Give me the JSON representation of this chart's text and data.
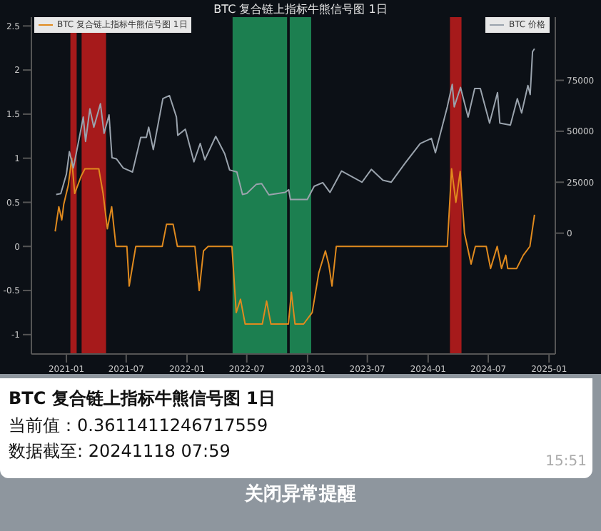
{
  "chart_data": {
    "type": "line",
    "title": "BTC 复合链上指标牛熊信号图 1日",
    "series": [
      {
        "name": "BTC 复合链上指标牛熊信号图 1日",
        "color": "#e08a1e",
        "axis": "y",
        "x": [
          "2020-11-28",
          "2020-12-09",
          "2020-12-18",
          "2020-12-24",
          "2021-01-07",
          "2021-01-17",
          "2021-01-26",
          "2021-02-15",
          "2021-02-26",
          "2021-04-09",
          "2021-04-22",
          "2021-05-05",
          "2021-05-18",
          "2021-05-31",
          "2021-07-03",
          "2021-07-10",
          "2021-07-21",
          "2021-07-30",
          "2021-10-18",
          "2021-10-31",
          "2021-11-20",
          "2021-12-03",
          "2022-01-25",
          "2022-02-07",
          "2022-02-20",
          "2022-03-06",
          "2022-05-17",
          "2022-05-30",
          "2022-06-12",
          "2022-06-26",
          "2022-08-17",
          "2022-08-30",
          "2022-09-12",
          "2022-11-04",
          "2022-11-13",
          "2022-11-24",
          "2022-12-20",
          "2023-01-15",
          "2023-02-04",
          "2023-02-24",
          "2023-03-06",
          "2023-03-16",
          "2023-03-29",
          "2024-02-28",
          "2024-03-12",
          "2024-03-25",
          "2024-04-07",
          "2024-04-20",
          "2024-05-10",
          "2024-05-23",
          "2024-06-25",
          "2024-07-08",
          "2024-07-28",
          "2024-08-10",
          "2024-08-23",
          "2024-08-29",
          "2024-09-25",
          "2024-10-15",
          "2024-11-04",
          "2024-11-18"
        ],
        "values": [
          0.17,
          0.45,
          0.3,
          0.48,
          0.7,
          1.0,
          0.6,
          0.8,
          0.88,
          0.88,
          0.6,
          0.2,
          0.45,
          0,
          0,
          -0.45,
          -0.2,
          0,
          0,
          0.25,
          0.25,
          0,
          0,
          -0.5,
          -0.05,
          0,
          0,
          -0.75,
          -0.6,
          -0.88,
          -0.88,
          -0.62,
          -0.88,
          -0.88,
          -0.52,
          -0.88,
          -0.88,
          -0.75,
          -0.3,
          -0.05,
          -0.2,
          -0.45,
          0,
          0,
          0.88,
          0.5,
          0.85,
          0.15,
          -0.2,
          0,
          0,
          -0.25,
          0,
          -0.25,
          -0.1,
          -0.25,
          -0.25,
          -0.1,
          0,
          0.36
        ]
      },
      {
        "name": "BTC 价格",
        "color": "#9aa3ad",
        "axis": "y2",
        "x": [
          "2020-12-01",
          "2020-12-15",
          "2021-01-01",
          "2021-01-10",
          "2021-01-22",
          "2021-02-08",
          "2021-02-21",
          "2021-02-28",
          "2021-03-13",
          "2021-03-25",
          "2021-04-14",
          "2021-04-25",
          "2021-05-10",
          "2021-05-19",
          "2021-06-01",
          "2021-06-22",
          "2021-07-20",
          "2021-08-14",
          "2021-08-31",
          "2021-09-07",
          "2021-09-21",
          "2021-10-20",
          "2021-11-09",
          "2021-11-30",
          "2021-12-04",
          "2021-12-27",
          "2022-01-22",
          "2022-02-10",
          "2022-02-24",
          "2022-03-29",
          "2022-04-25",
          "2022-05-10",
          "2022-06-01",
          "2022-06-18",
          "2022-07-01",
          "2022-07-30",
          "2022-08-15",
          "2022-09-06",
          "2022-10-25",
          "2022-11-05",
          "2022-11-10",
          "2022-12-31",
          "2023-01-21",
          "2023-02-16",
          "2023-03-10",
          "2023-04-14",
          "2023-06-15",
          "2023-07-13",
          "2023-08-17",
          "2023-09-11",
          "2023-10-24",
          "2023-12-08",
          "2024-01-11",
          "2024-01-23",
          "2024-02-28",
          "2024-03-14",
          "2024-03-20",
          "2024-04-08",
          "2024-05-01",
          "2024-05-21",
          "2024-06-07",
          "2024-07-05",
          "2024-07-29",
          "2024-08-05",
          "2024-09-06",
          "2024-09-27",
          "2024-10-10",
          "2024-10-29",
          "2024-11-05",
          "2024-11-12",
          "2024-11-18"
        ],
        "values": [
          19000,
          19400,
          29000,
          40000,
          32000,
          46000,
          57000,
          45000,
          61000,
          52000,
          63500,
          49000,
          58000,
          37000,
          36500,
          32000,
          30000,
          47000,
          47000,
          52000,
          41000,
          66000,
          67500,
          57000,
          48000,
          51000,
          35000,
          44000,
          36000,
          47500,
          39000,
          31000,
          30000,
          19000,
          19500,
          24000,
          24300,
          18800,
          20000,
          21300,
          16500,
          16500,
          23000,
          24800,
          20000,
          30500,
          25000,
          31300,
          26000,
          25000,
          34500,
          44000,
          46500,
          39500,
          62000,
          73000,
          62000,
          71500,
          57000,
          71000,
          71000,
          54000,
          69000,
          54000,
          53000,
          66000,
          59000,
          72500,
          68000,
          89000,
          90500
        ]
      }
    ],
    "xlim": [
      "2020-09-17",
      "2025-01-20"
    ],
    "xticks": [
      "2021-01",
      "2021-07",
      "2022-01",
      "2022-07",
      "2023-01",
      "2023-07",
      "2024-01",
      "2024-07",
      "2025-01"
    ],
    "ylim": [
      -1.22,
      2.6
    ],
    "yticks": [
      -1,
      -0.5,
      0,
      0.5,
      1,
      1.5,
      2,
      2.5
    ],
    "y2lim": [
      -59300,
      106000
    ],
    "y2ticks": [
      0,
      25000,
      50000,
      75000
    ],
    "bands": [
      {
        "axis": "x",
        "from": "2021-01-13",
        "to": "2021-02-01",
        "color": "#b71c1c"
      },
      {
        "axis": "x",
        "from": "2021-02-16",
        "to": "2021-05-01",
        "color": "#b71c1c"
      },
      {
        "axis": "x",
        "from": "2022-05-19",
        "to": "2022-10-31",
        "color": "#1e8c57"
      },
      {
        "axis": "x",
        "from": "2022-11-08",
        "to": "2023-01-12",
        "color": "#1e8c57"
      },
      {
        "axis": "x",
        "from": "2024-03-07",
        "to": "2024-04-11",
        "color": "#b71c1c"
      }
    ],
    "legend": "top",
    "grid": false,
    "marker": "none",
    "line_style": "solid",
    "annotations": [
      "BTC 复合链上指标牛熊信号图 1日",
      "当前值：0.3611411246717559",
      "数据截至: 20241118 07:59",
      "15:51",
      "关闭异常提醒"
    ]
  }
}
